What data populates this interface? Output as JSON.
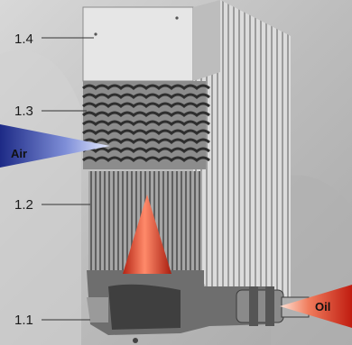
{
  "callouts": [
    {
      "id": "1.4",
      "text": "1.4"
    },
    {
      "id": "1.3",
      "text": "1.3"
    },
    {
      "id": "1.2",
      "text": "1.2"
    },
    {
      "id": "1.1",
      "text": "1.1"
    }
  ],
  "flows": {
    "air": "Air",
    "oil": "Oil"
  },
  "colors": {
    "air_arrow": "#3b4fb0",
    "oil_arrow": "#d23a22",
    "flow_arrow_up": "#e2482c"
  }
}
